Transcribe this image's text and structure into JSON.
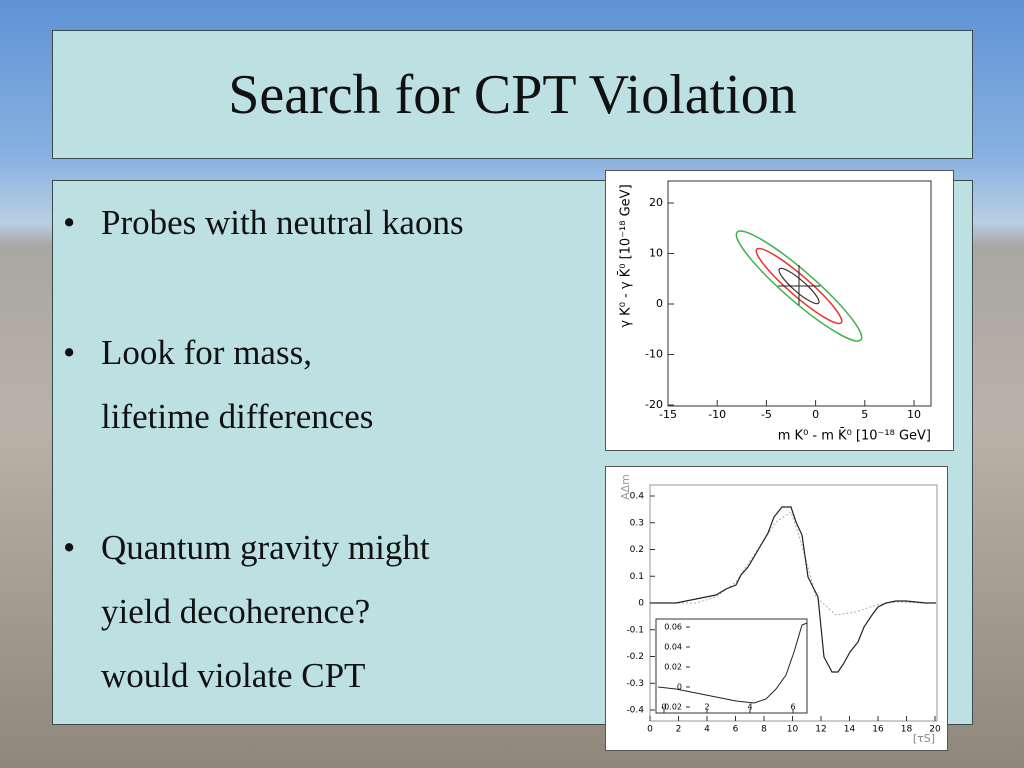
{
  "title": "Search for CPT Violation",
  "bullets": [
    {
      "lines": [
        "Probes with neutral kaons"
      ]
    },
    {
      "lines": [
        "Look for mass,",
        "lifetime differences"
      ]
    },
    {
      "lines": [
        "Quantum gravity might",
        "yield decoherence?",
        "would violate CPT"
      ]
    }
  ],
  "figures": [
    {
      "xticks": [
        -15,
        -10,
        -5,
        0,
        5,
        10
      ],
      "yticks": [
        20,
        10,
        0,
        -10,
        -20
      ],
      "xlabel": "m K⁰ - m K̄⁰ [10⁻¹⁸ GeV]",
      "ylabel": "γ K⁰ - γ K̄⁰ [10⁻¹⁸ GeV]"
    },
    {
      "xticks": [
        0,
        2,
        4,
        6,
        8,
        10,
        12,
        14,
        16,
        18,
        20
      ],
      "yticks": [
        0.4,
        0.3,
        0.2,
        0.1,
        0,
        -0.1,
        -0.2,
        -0.3,
        -0.4
      ],
      "xlabel": "[τS]",
      "ylabel": "AΔm",
      "inset_xticks": [
        0,
        2,
        4,
        6
      ],
      "inset_yticks": [
        0.06,
        0.04,
        0.02,
        0,
        -0.02
      ]
    }
  ]
}
